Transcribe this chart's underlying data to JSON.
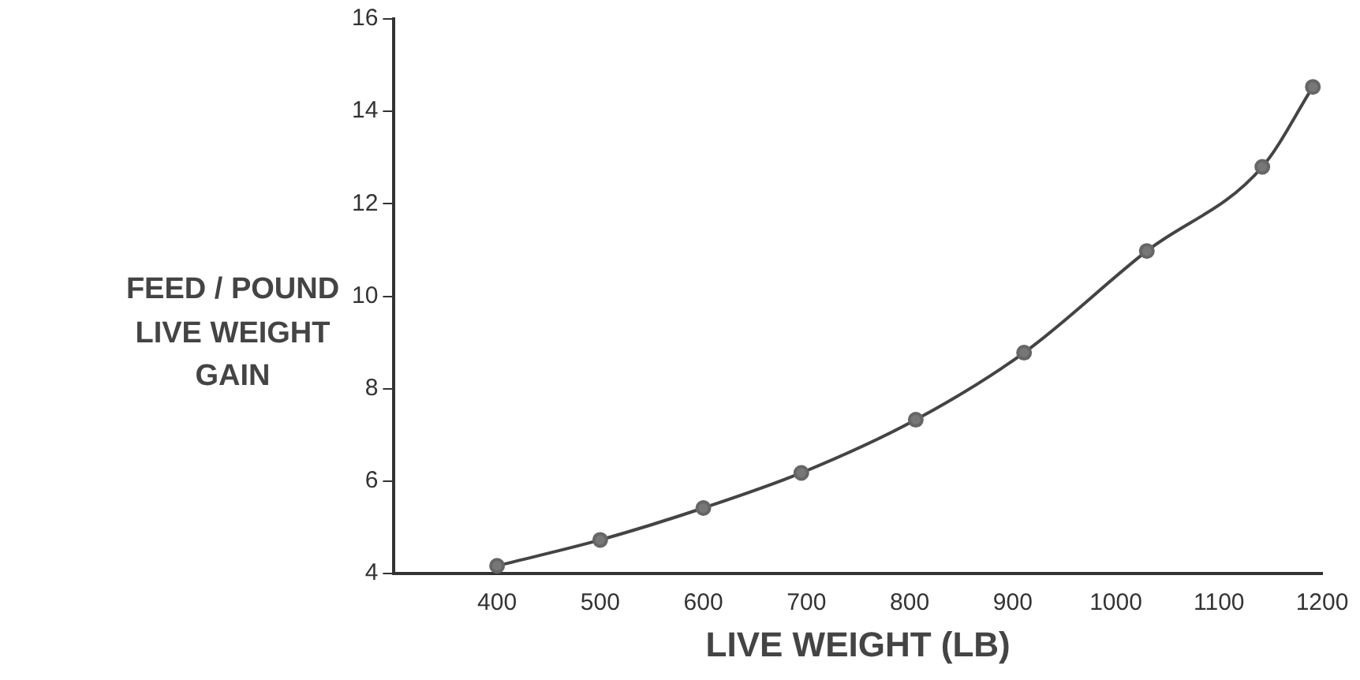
{
  "chart_data": {
    "type": "line",
    "xlabel": "LIVE WEIGHT (LB)",
    "ylabel": "FEED / POUND LIVE WEIGHT GAIN",
    "x": [
      400,
      500,
      600,
      695,
      806,
      911,
      1030,
      1142,
      1191
    ],
    "series": [
      {
        "color": "#444444",
        "values": [
          4.17,
          4.73,
          5.42,
          6.18,
          7.33,
          8.78,
          10.98,
          12.8,
          14.53
        ]
      }
    ],
    "xlim": [
      300,
      1200
    ],
    "xticks": [
      400,
      500,
      600,
      700,
      800,
      900,
      1000,
      1100,
      1200
    ],
    "ylim": [
      4,
      16
    ],
    "yticks": [
      4,
      6,
      8,
      10,
      12,
      14,
      16
    ],
    "grid": false,
    "legend": false,
    "marker": "circle",
    "line_style": "solid"
  }
}
